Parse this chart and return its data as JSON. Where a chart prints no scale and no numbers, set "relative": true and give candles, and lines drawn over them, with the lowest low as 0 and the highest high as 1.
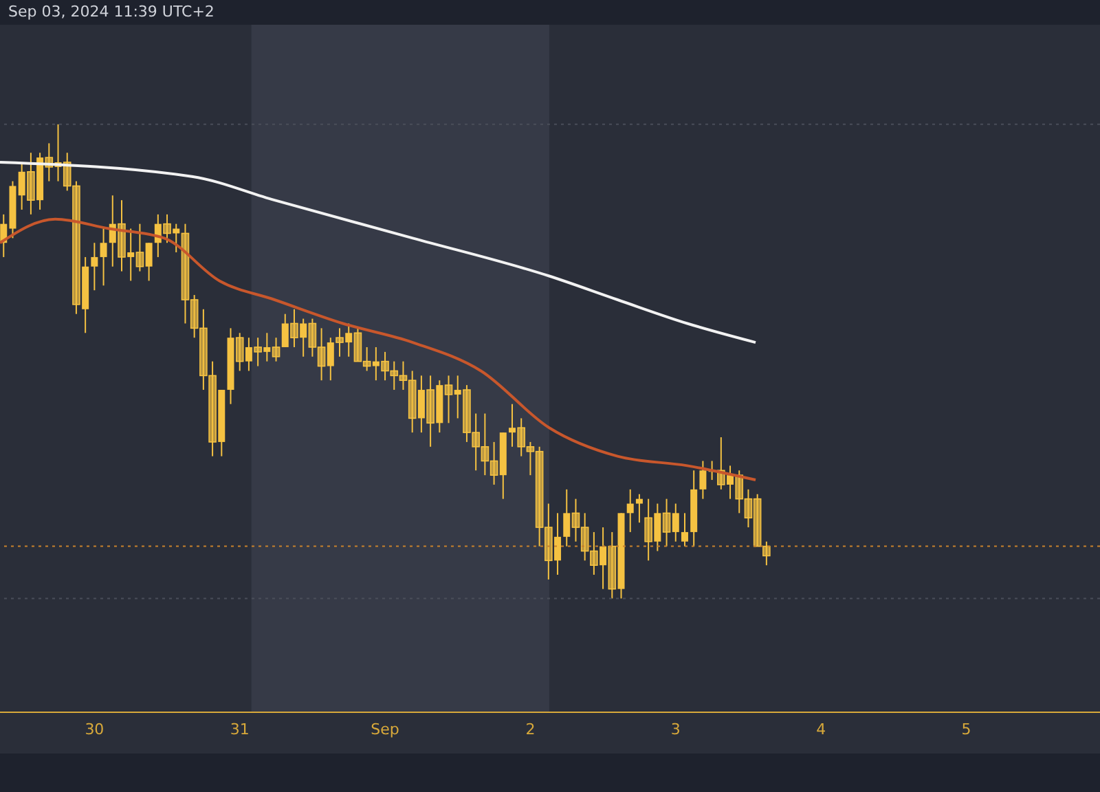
{
  "chart_data": {
    "type": "candlestick",
    "relative": true,
    "annotations": [
      "Sep 03, 2024 11:39 UTC+2"
    ],
    "xlim": [
      "2024-08-29T08:24",
      "2024-09-05T22:05"
    ],
    "xticks": [
      {
        "value": "2024-08-30",
        "label": "30"
      },
      {
        "value": "2024-08-31",
        "label": "31"
      },
      {
        "value": "2024-09-01",
        "label": "Sep"
      },
      {
        "value": "2024-09-02",
        "label": "2"
      },
      {
        "value": "2024-09-03",
        "label": "3"
      },
      {
        "value": "2024-09-04",
        "label": "4"
      },
      {
        "value": "2024-09-05",
        "label": "5"
      }
    ],
    "color": "#f5c242",
    "x": [
      "2024-08-29T09:00",
      "2024-08-29T10:30",
      "2024-08-29T12:00",
      "2024-08-29T13:30",
      "2024-08-29T15:00",
      "2024-08-29T16:30",
      "2024-08-29T18:00",
      "2024-08-29T19:30",
      "2024-08-29T21:00",
      "2024-08-29T22:30",
      "2024-08-30T00:00",
      "2024-08-30T01:30",
      "2024-08-30T03:00",
      "2024-08-30T04:30",
      "2024-08-30T06:00",
      "2024-08-30T07:30",
      "2024-08-30T09:00",
      "2024-08-30T10:30",
      "2024-08-30T12:00",
      "2024-08-30T13:30",
      "2024-08-30T15:00",
      "2024-08-30T16:30",
      "2024-08-30T18:00",
      "2024-08-30T19:30",
      "2024-08-30T21:00",
      "2024-08-30T22:30",
      "2024-08-31T00:00",
      "2024-08-31T01:30",
      "2024-08-31T03:00",
      "2024-08-31T04:30",
      "2024-08-31T06:00",
      "2024-08-31T07:30",
      "2024-08-31T09:00",
      "2024-08-31T10:30",
      "2024-08-31T12:00",
      "2024-08-31T13:30",
      "2024-08-31T15:00",
      "2024-08-31T16:30",
      "2024-08-31T18:00",
      "2024-08-31T19:30",
      "2024-08-31T21:00",
      "2024-08-31T22:30",
      "2024-09-01T00:00",
      "2024-09-01T01:30",
      "2024-09-01T03:00",
      "2024-09-01T04:30",
      "2024-09-01T06:00",
      "2024-09-01T07:30",
      "2024-09-01T09:00",
      "2024-09-01T10:30",
      "2024-09-01T12:00",
      "2024-09-01T13:30",
      "2024-09-01T15:00",
      "2024-09-01T16:30",
      "2024-09-01T18:00",
      "2024-09-01T19:30",
      "2024-09-01T21:00",
      "2024-09-01T22:30",
      "2024-09-02T00:00",
      "2024-09-02T01:30",
      "2024-09-02T03:00",
      "2024-09-02T04:30",
      "2024-09-02T06:00",
      "2024-09-02T07:30",
      "2024-09-02T09:00",
      "2024-09-02T10:30",
      "2024-09-02T12:00",
      "2024-09-02T13:30",
      "2024-09-02T15:00",
      "2024-09-02T16:30",
      "2024-09-02T18:00",
      "2024-09-02T19:30",
      "2024-09-02T21:00",
      "2024-09-02T22:30",
      "2024-09-03T00:00",
      "2024-09-03T01:30",
      "2024-09-03T03:00",
      "2024-09-03T04:30",
      "2024-09-03T06:00",
      "2024-09-03T07:30",
      "2024-09-03T09:00",
      "2024-09-03T10:30",
      "2024-09-03T12:00",
      "2024-09-03T13:30",
      "2024-09-03T15:00"
    ],
    "ohlc": [
      [
        0.75,
        0.81,
        0.72,
        0.79
      ],
      [
        0.78,
        0.88,
        0.76,
        0.87
      ],
      [
        0.85,
        0.92,
        0.82,
        0.9
      ],
      [
        0.9,
        0.94,
        0.81,
        0.84
      ],
      [
        0.84,
        0.94,
        0.82,
        0.93
      ],
      [
        0.93,
        0.96,
        0.88,
        0.91
      ],
      [
        0.91,
        1,
        0.88,
        0.92
      ],
      [
        0.92,
        0.94,
        0.86,
        0.87
      ],
      [
        0.87,
        0.88,
        0.6,
        0.62
      ],
      [
        0.61,
        0.72,
        0.56,
        0.7
      ],
      [
        0.7,
        0.75,
        0.65,
        0.72
      ],
      [
        0.72,
        0.78,
        0.66,
        0.75
      ],
      [
        0.75,
        0.85,
        0.7,
        0.79
      ],
      [
        0.79,
        0.84,
        0.69,
        0.72
      ],
      [
        0.72,
        0.78,
        0.67,
        0.73
      ],
      [
        0.73,
        0.79,
        0.69,
        0.7
      ],
      [
        0.7,
        0.75,
        0.67,
        0.75
      ],
      [
        0.75,
        0.81,
        0.72,
        0.79
      ],
      [
        0.79,
        0.81,
        0.75,
        0.77
      ],
      [
        0.77,
        0.79,
        0.73,
        0.78
      ],
      [
        0.77,
        0.79,
        0.58,
        0.63
      ],
      [
        0.63,
        0.64,
        0.55,
        0.57
      ],
      [
        0.57,
        0.61,
        0.44,
        0.47
      ],
      [
        0.47,
        0.5,
        0.3,
        0.33
      ],
      [
        0.33,
        0.44,
        0.3,
        0.44
      ],
      [
        0.44,
        0.57,
        0.41,
        0.55
      ],
      [
        0.55,
        0.56,
        0.48,
        0.5
      ],
      [
        0.5,
        0.55,
        0.48,
        0.53
      ],
      [
        0.53,
        0.55,
        0.49,
        0.52
      ],
      [
        0.52,
        0.56,
        0.5,
        0.53
      ],
      [
        0.53,
        0.55,
        0.5,
        0.51
      ],
      [
        0.53,
        0.6,
        0.53,
        0.58
      ],
      [
        0.58,
        0.61,
        0.53,
        0.55
      ],
      [
        0.55,
        0.59,
        0.51,
        0.58
      ],
      [
        0.58,
        0.59,
        0.51,
        0.53
      ],
      [
        0.53,
        0.57,
        0.46,
        0.49
      ],
      [
        0.49,
        0.55,
        0.46,
        0.54
      ],
      [
        0.55,
        0.57,
        0.51,
        0.54
      ],
      [
        0.54,
        0.58,
        0.51,
        0.56
      ],
      [
        0.56,
        0.57,
        0.5,
        0.5
      ],
      [
        0.5,
        0.53,
        0.48,
        0.49
      ],
      [
        0.49,
        0.53,
        0.46,
        0.5
      ],
      [
        0.5,
        0.52,
        0.46,
        0.48
      ],
      [
        0.48,
        0.5,
        0.44,
        0.47
      ],
      [
        0.47,
        0.5,
        0.44,
        0.46
      ],
      [
        0.46,
        0.48,
        0.35,
        0.38
      ],
      [
        0.38,
        0.47,
        0.35,
        0.44
      ],
      [
        0.44,
        0.47,
        0.32,
        0.37
      ],
      [
        0.37,
        0.46,
        0.35,
        0.45
      ],
      [
        0.45,
        0.47,
        0.37,
        0.43
      ],
      [
        0.43,
        0.47,
        0.38,
        0.44
      ],
      [
        0.44,
        0.45,
        0.33,
        0.35
      ],
      [
        0.35,
        0.39,
        0.27,
        0.32
      ],
      [
        0.32,
        0.39,
        0.26,
        0.29
      ],
      [
        0.29,
        0.33,
        0.24,
        0.26
      ],
      [
        0.26,
        0.35,
        0.21,
        0.35
      ],
      [
        0.35,
        0.41,
        0.32,
        0.36
      ],
      [
        0.36,
        0.38,
        0.3,
        0.32
      ],
      [
        0.32,
        0.33,
        0.26,
        0.31
      ],
      [
        0.31,
        0.32,
        0.11,
        0.15
      ],
      [
        0.15,
        0.2,
        0.04,
        0.08
      ],
      [
        0.08,
        0.18,
        0.05,
        0.13
      ],
      [
        0.13,
        0.23,
        0.11,
        0.18
      ],
      [
        0.18,
        0.21,
        0.12,
        0.15
      ],
      [
        0.15,
        0.18,
        0.08,
        0.1
      ],
      [
        0.1,
        0.14,
        0.05,
        0.07
      ],
      [
        0.07,
        0.15,
        0.02,
        0.11
      ],
      [
        0.11,
        0.14,
        0,
        0.02
      ],
      [
        0.02,
        0.18,
        0,
        0.18
      ],
      [
        0.18,
        0.23,
        0.14,
        0.2
      ],
      [
        0.2,
        0.22,
        0.16,
        0.21
      ],
      [
        0.17,
        0.21,
        0.08,
        0.12
      ],
      [
        0.12,
        0.2,
        0.1,
        0.18
      ],
      [
        0.18,
        0.21,
        0.11,
        0.14
      ],
      [
        0.14,
        0.2,
        0.12,
        0.18
      ],
      [
        0.12,
        0.18,
        0.11,
        0.14
      ],
      [
        0.14,
        0.27,
        0.11,
        0.23
      ],
      [
        0.23,
        0.29,
        0.21,
        0.27
      ],
      [
        0.27,
        0.29,
        0.25,
        0.27
      ],
      [
        0.27,
        0.34,
        0.23,
        0.24
      ],
      [
        0.24,
        0.28,
        0.21,
        0.26
      ],
      [
        0.26,
        0.27,
        0.18,
        0.21
      ],
      [
        0.21,
        0.23,
        0.15,
        0.17
      ],
      [
        0.21,
        0.22,
        0.11,
        0.11
      ],
      [
        0.11,
        0.12,
        0.07,
        0.09
      ]
    ],
    "series": [
      {
        "type": "line",
        "color": "#f2f2f2",
        "x": [
          "2024-08-29T08:24",
          "2024-08-30T16:05",
          "2024-08-31T05:45",
          "2024-09-01T04:34",
          "2024-09-02T03:07",
          "2024-09-02T14:24",
          "2024-09-03T01:55",
          "2024-09-03T13:12"
        ],
        "values": [
          0.92,
          0.89,
          0.84,
          0.76,
          0.68,
          0.63,
          0.58,
          0.54
        ]
      },
      {
        "type": "line",
        "color": "#c8572c",
        "x": [
          "2024-08-29T08:24",
          "2024-08-29T17:31",
          "2024-08-30T02:24",
          "2024-08-30T11:31",
          "2024-08-30T20:38",
          "2024-08-31T05:45",
          "2024-08-31T17:02",
          "2024-09-01T04:34",
          "2024-09-01T15:50",
          "2024-09-02T03:07",
          "2024-09-02T14:24",
          "2024-09-03T01:55",
          "2024-09-03T13:12"
        ],
        "values": [
          0.75,
          0.8,
          0.78,
          0.76,
          0.67,
          0.63,
          0.58,
          0.54,
          0.48,
          0.36,
          0.3,
          0.28,
          0.25
        ]
      }
    ],
    "ref_lines": [
      {
        "axis": "y",
        "value": 1,
        "color": "#4a4e5a",
        "line_style": "dotted"
      },
      {
        "axis": "y",
        "value": 0,
        "color": "#4a4e5a",
        "line_style": "dotted"
      },
      {
        "axis": "y",
        "value": 0.11,
        "color": "#c8822c",
        "line_style": "dotted"
      }
    ],
    "bands": [
      {
        "axis": "x",
        "from": "2024-08-31T01:55",
        "to": "2024-09-02T03:07",
        "color": "#363a47"
      }
    ]
  }
}
